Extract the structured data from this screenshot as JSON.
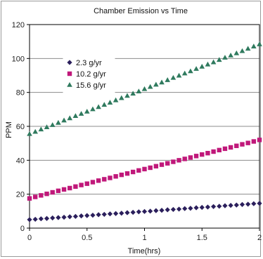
{
  "chart_data": {
    "type": "scatter",
    "title": "Chamber Emission vs Time",
    "xlabel": "Time(hrs)",
    "ylabel": "PPM",
    "xlim": [
      0,
      2
    ],
    "ylim": [
      0,
      120
    ],
    "x_ticks": [
      "0",
      "0.5",
      "1",
      "1.5",
      "2"
    ],
    "y_ticks": [
      "0",
      "20",
      "40",
      "60",
      "80",
      "100",
      "120"
    ],
    "grid": "horizontal",
    "legend_position": "top-left inside plot",
    "series": [
      {
        "name": "2.3 g/yr",
        "marker": "diamond",
        "color": "#2b1f5c",
        "x": [
          0,
          0.05,
          0.1,
          0.15,
          0.2,
          0.25,
          0.3,
          0.35,
          0.4,
          0.45,
          0.5,
          0.55,
          0.6,
          0.65,
          0.7,
          0.75,
          0.8,
          0.85,
          0.9,
          0.95,
          1.0,
          1.05,
          1.1,
          1.15,
          1.2,
          1.25,
          1.3,
          1.35,
          1.4,
          1.45,
          1.5,
          1.55,
          1.6,
          1.65,
          1.7,
          1.75,
          1.8,
          1.85,
          1.9,
          1.95,
          2.0
        ],
        "values": [
          5.0,
          5.2,
          5.5,
          5.7,
          6.0,
          6.2,
          6.4,
          6.7,
          6.9,
          7.2,
          7.4,
          7.6,
          7.9,
          8.1,
          8.4,
          8.6,
          8.8,
          9.1,
          9.3,
          9.6,
          9.8,
          10.0,
          10.3,
          10.5,
          10.8,
          11.0,
          11.2,
          11.5,
          11.7,
          12.0,
          12.2,
          12.4,
          12.7,
          12.9,
          13.2,
          13.4,
          13.6,
          13.9,
          14.1,
          14.4,
          14.6
        ]
      },
      {
        "name": "10.2 g/yr",
        "marker": "square",
        "color": "#c0187a",
        "x": [
          0,
          0.05,
          0.1,
          0.15,
          0.2,
          0.25,
          0.3,
          0.35,
          0.4,
          0.45,
          0.5,
          0.55,
          0.6,
          0.65,
          0.7,
          0.75,
          0.8,
          0.85,
          0.9,
          0.95,
          1.0,
          1.05,
          1.1,
          1.15,
          1.2,
          1.25,
          1.3,
          1.35,
          1.4,
          1.45,
          1.5,
          1.55,
          1.6,
          1.65,
          1.7,
          1.75,
          1.8,
          1.85,
          1.9,
          1.95,
          2.0
        ],
        "values": [
          17.5,
          18.4,
          19.3,
          20.2,
          21.1,
          22.0,
          22.8,
          23.6,
          24.5,
          25.4,
          26.2,
          27.1,
          28.0,
          28.8,
          29.6,
          30.5,
          31.4,
          32.2,
          33.1,
          34.0,
          34.8,
          35.6,
          36.5,
          37.4,
          38.2,
          39.1,
          40.0,
          40.8,
          41.6,
          42.5,
          43.4,
          44.2,
          45.1,
          46.0,
          46.8,
          47.6,
          48.5,
          49.4,
          50.2,
          51.1,
          52.0
        ]
      },
      {
        "name": "15.6 g/yr",
        "marker": "triangle",
        "color": "#2f7a5e",
        "x": [
          0,
          0.05,
          0.1,
          0.15,
          0.2,
          0.25,
          0.3,
          0.35,
          0.4,
          0.45,
          0.5,
          0.55,
          0.6,
          0.65,
          0.7,
          0.75,
          0.8,
          0.85,
          0.9,
          0.95,
          1.0,
          1.05,
          1.1,
          1.15,
          1.2,
          1.25,
          1.3,
          1.35,
          1.4,
          1.45,
          1.5,
          1.55,
          1.6,
          1.65,
          1.7,
          1.75,
          1.8,
          1.85,
          1.9,
          1.95,
          2.0
        ],
        "values": [
          55.5,
          56.8,
          58.2,
          59.5,
          60.8,
          62.1,
          63.5,
          64.8,
          66.1,
          67.4,
          68.7,
          70.1,
          71.4,
          72.7,
          74.0,
          75.4,
          76.7,
          78.0,
          79.3,
          80.6,
          82.0,
          83.3,
          84.6,
          85.9,
          87.3,
          88.6,
          89.9,
          91.2,
          92.5,
          93.9,
          95.2,
          96.5,
          97.8,
          99.2,
          100.5,
          101.8,
          103.1,
          104.4,
          105.8,
          107.1,
          108.4
        ]
      }
    ]
  }
}
